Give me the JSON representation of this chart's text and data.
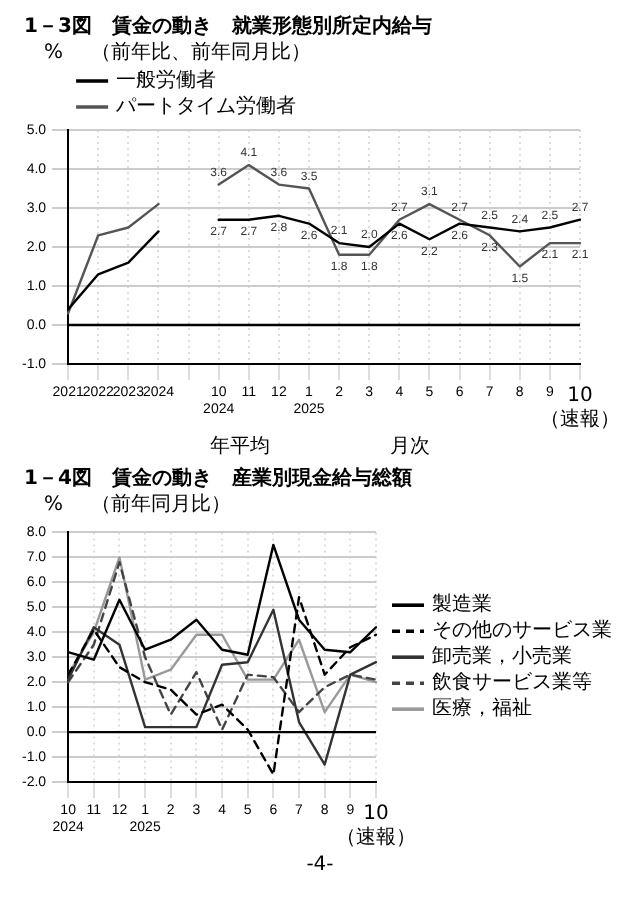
{
  "chart_data": [
    {
      "type": "line",
      "title": "1－3図　賃金の動き　就業形態別所定内給与",
      "subtitle": "（前年比、前年同月比）",
      "ylabel": "%",
      "categories": [
        "2021",
        "2022",
        "2023",
        "2024",
        null,
        "10\n2024",
        "11",
        "12",
        "1\n2025",
        "2",
        "3",
        "4",
        "5",
        "6",
        "7",
        "8",
        "9",
        "10\n（速報）"
      ],
      "series": [
        {
          "name": "一般労働者",
          "color": "#000000",
          "values": [
            0.4,
            1.3,
            1.6,
            2.4,
            null,
            2.7,
            2.7,
            2.8,
            2.6,
            2.1,
            2.0,
            2.6,
            2.2,
            2.6,
            2.5,
            2.4,
            2.5,
            2.7
          ],
          "value_labels": [
            null,
            null,
            null,
            null,
            null,
            "2.7",
            "2.7",
            "2.8",
            "2.6",
            "2.1",
            "2.0",
            "2.6",
            "2.2",
            "2.6",
            "2.5",
            "2.4",
            "2.5",
            "2.7"
          ]
        },
        {
          "name": "パートタイム労働者",
          "color": "#555555",
          "values": [
            0.3,
            2.3,
            2.5,
            3.1,
            null,
            3.6,
            4.1,
            3.6,
            3.5,
            1.8,
            1.8,
            2.7,
            3.1,
            2.7,
            2.3,
            1.5,
            2.1,
            2.1
          ],
          "value_labels": [
            null,
            null,
            null,
            null,
            null,
            "3.6",
            "4.1",
            "3.6",
            "3.5",
            "1.8",
            "1.8",
            "2.7",
            "3.1",
            "2.7",
            "2.3",
            "1.5",
            "2.1",
            "2.1"
          ]
        }
      ],
      "ylim": [
        -1,
        5
      ],
      "yticks": [
        {
          "value": -1,
          "label": "-1.0"
        },
        {
          "value": 0,
          "label": "0.0"
        },
        {
          "value": 1,
          "label": "1.0"
        },
        {
          "value": 2,
          "label": "2.0"
        },
        {
          "value": 3,
          "label": "3.0"
        },
        {
          "value": 4,
          "label": "4.0"
        },
        {
          "value": 5,
          "label": "5.0"
        }
      ],
      "grid": true,
      "legend": "top left",
      "ref_lines": [
        {
          "axis": "y",
          "value": 0
        }
      ],
      "annotations": [
        "年平均",
        "月次"
      ]
    },
    {
      "type": "line",
      "title": "1－4図　賃金の動き　産業別現金給与総額",
      "subtitle": "（前年同月比）",
      "ylabel": "%",
      "categories": [
        "10\n2024",
        "11",
        "12",
        "1\n2025",
        "2",
        "3",
        "4",
        "5",
        "6",
        "7",
        "8",
        "9",
        "10\n（速報）"
      ],
      "series": [
        {
          "name": "製造業",
          "color": "#000000",
          "line_style": "solid",
          "values": [
            3.2,
            2.9,
            5.3,
            3.3,
            3.7,
            4.5,
            3.3,
            3.1,
            7.5,
            4.5,
            3.3,
            3.2,
            4.2
          ]
        },
        {
          "name": "その他のサービス業",
          "color": "#000000",
          "line_style": "dashed",
          "values": [
            2.3,
            4.1,
            2.6,
            2.0,
            1.7,
            0.7,
            1.1,
            0.1,
            -1.7,
            5.4,
            2.3,
            3.4,
            3.9
          ]
        },
        {
          "name": "卸売業，小売業",
          "color": "#333333",
          "line_style": "solid",
          "values": [
            2.1,
            4.2,
            3.5,
            0.2,
            0.2,
            0.2,
            2.7,
            2.8,
            4.9,
            0.4,
            -1.3,
            2.3,
            2.8
          ]
        },
        {
          "name": "飲食サービス業等",
          "color": "#444444",
          "line_style": "dashed",
          "values": [
            2.0,
            3.5,
            6.8,
            3.0,
            0.7,
            2.4,
            0.1,
            2.3,
            2.2,
            0.8,
            1.8,
            2.3,
            2.1
          ]
        },
        {
          "name": "医療，福祉",
          "color": "#999999",
          "line_style": "solid",
          "values": [
            2.3,
            4.0,
            7.0,
            2.1,
            2.5,
            3.9,
            3.9,
            2.1,
            2.1,
            3.7,
            0.8,
            2.3,
            2.0
          ]
        }
      ],
      "ylim": [
        -2,
        8
      ],
      "yticks": [
        {
          "value": -2,
          "label": "-2.0"
        },
        {
          "value": -1,
          "label": "-1.0"
        },
        {
          "value": 0,
          "label": "0.0"
        },
        {
          "value": 1,
          "label": "1.0"
        },
        {
          "value": 2,
          "label": "2.0"
        },
        {
          "value": 3,
          "label": "3.0"
        },
        {
          "value": 4,
          "label": "4.0"
        },
        {
          "value": 5,
          "label": "5.0"
        },
        {
          "value": 6,
          "label": "6.0"
        },
        {
          "value": 7,
          "label": "7.0"
        },
        {
          "value": 8,
          "label": "8.0"
        }
      ],
      "grid": true,
      "legend": "right",
      "ref_lines": [
        {
          "axis": "y",
          "value": 0
        }
      ],
      "annotations": [
        "-4-"
      ]
    }
  ]
}
